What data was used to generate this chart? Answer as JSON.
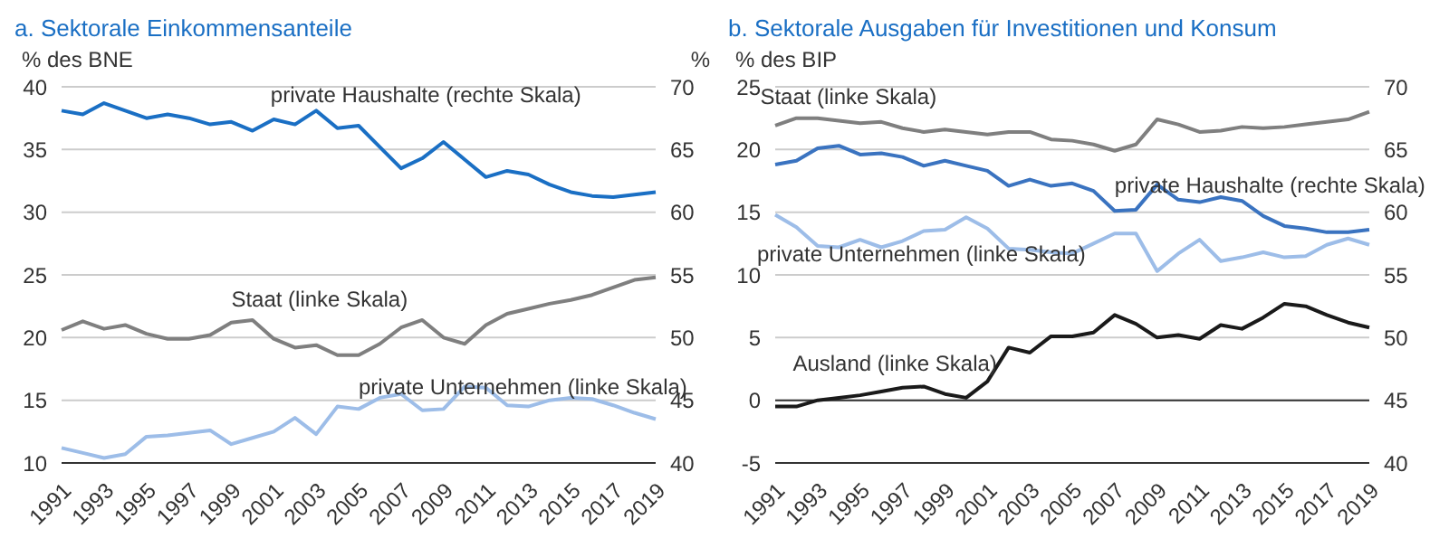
{
  "chart_data": [
    {
      "type": "line",
      "title": "a. Sektorale Einkommensanteile",
      "ylabel": "% des BNE",
      "y2label": "%",
      "categories": [
        "1991",
        null,
        "1993",
        null,
        "1995",
        null,
        "1997",
        null,
        "1999",
        null,
        "2001",
        null,
        "2003",
        null,
        "2005",
        null,
        "2007",
        null,
        "2009",
        null,
        "2011",
        null,
        "2013",
        null,
        "2015",
        null,
        "2017",
        null,
        "2019"
      ],
      "series": [
        {
          "name": "private Haushalte (rechte Skala)",
          "color": "#1a6fc4",
          "axis": "y2",
          "values": [
            68.1,
            67.8,
            68.7,
            68.1,
            67.5,
            67.8,
            67.5,
            67.0,
            67.2,
            66.5,
            67.4,
            67.0,
            68.1,
            66.7,
            66.9,
            65.2,
            63.5,
            64.3,
            65.6,
            64.2,
            62.8,
            63.3,
            63.0,
            62.2,
            61.6,
            61.3,
            61.2,
            61.4,
            61.6
          ]
        },
        {
          "name": "Staat (linke Skala)",
          "color": "#7f7f7f",
          "values": [
            20.6,
            21.3,
            20.7,
            21.0,
            20.3,
            19.9,
            19.9,
            20.2,
            21.2,
            21.4,
            19.9,
            19.2,
            19.4,
            18.6,
            18.6,
            19.5,
            20.8,
            21.4,
            20.0,
            19.5,
            21.0,
            21.9,
            22.3,
            22.7,
            23.0,
            23.4,
            24.0,
            24.6,
            24.8
          ]
        },
        {
          "name": "private Unternehmen (linke Skala)",
          "color": "#9dbde8",
          "values": [
            11.2,
            10.8,
            10.4,
            10.7,
            12.1,
            12.2,
            12.4,
            12.6,
            11.5,
            12.0,
            12.5,
            13.6,
            12.3,
            14.5,
            14.3,
            15.2,
            15.5,
            14.2,
            14.3,
            16.1,
            16.0,
            14.6,
            14.5,
            15.0,
            15.2,
            15.1,
            14.6,
            14.0,
            13.5
          ]
        }
      ],
      "ylim": [
        10,
        40
      ],
      "yticks": [
        10,
        15,
        20,
        25,
        30,
        35,
        40
      ],
      "y2lim": [
        40,
        70
      ],
      "y2ticks": [
        40,
        45,
        50,
        55,
        60,
        65,
        70
      ],
      "grid": "y",
      "legend": false
    },
    {
      "type": "line",
      "title": "b. Sektorale Ausgaben für Investitionen und Konsum",
      "ylabel": "% des BIP",
      "categories": [
        "1991",
        null,
        "1993",
        null,
        "1995",
        null,
        "1997",
        null,
        "1999",
        null,
        "2001",
        null,
        "2003",
        null,
        "2005",
        null,
        "2007",
        null,
        "2009",
        null,
        "2011",
        null,
        "2013",
        null,
        "2015",
        null,
        "2017",
        null,
        "2019"
      ],
      "series": [
        {
          "name": "Staat (linke Skala)",
          "color": "#7f7f7f",
          "values": [
            21.9,
            22.5,
            22.5,
            22.3,
            22.1,
            22.2,
            21.7,
            21.4,
            21.6,
            21.4,
            21.2,
            21.4,
            21.4,
            20.8,
            20.7,
            20.4,
            19.9,
            20.4,
            22.4,
            22.0,
            21.4,
            21.5,
            21.8,
            21.7,
            21.8,
            22.0,
            22.2,
            22.4,
            23.0
          ]
        },
        {
          "name": "private Haushalte (rechte Skala)",
          "color": "#3a73c0",
          "axis": "y2",
          "values": [
            63.8,
            64.1,
            65.1,
            65.3,
            64.6,
            64.7,
            64.4,
            63.7,
            64.1,
            63.7,
            63.3,
            62.1,
            62.6,
            62.1,
            62.3,
            61.7,
            60.1,
            60.2,
            62.2,
            61.0,
            60.8,
            61.2,
            60.9,
            59.7,
            58.9,
            58.7,
            58.4,
            58.4,
            58.6
          ]
        },
        {
          "name": "private Unternehmen (linke Skala)",
          "color": "#9dbde8",
          "values": [
            14.8,
            13.8,
            12.3,
            12.2,
            12.8,
            12.2,
            12.7,
            13.5,
            13.6,
            14.6,
            13.7,
            12.1,
            12.0,
            11.8,
            11.7,
            12.5,
            13.3,
            13.3,
            10.3,
            11.7,
            12.8,
            11.1,
            11.4,
            11.8,
            11.4,
            11.5,
            12.4,
            12.9,
            12.4
          ]
        },
        {
          "name": "Ausland (linke Skala)",
          "color": "#1a1a1a",
          "values": [
            -0.5,
            -0.5,
            0.0,
            0.2,
            0.4,
            0.7,
            1.0,
            1.1,
            0.5,
            0.2,
            1.5,
            4.2,
            3.8,
            5.1,
            5.1,
            5.4,
            6.8,
            6.1,
            5.0,
            5.2,
            4.9,
            6.0,
            5.7,
            6.6,
            7.7,
            7.5,
            6.8,
            6.2,
            5.8
          ]
        }
      ],
      "ylim": [
        -5,
        25
      ],
      "yticks": [
        -5,
        0,
        5,
        10,
        15,
        20,
        25
      ],
      "y2lim": [
        40,
        70
      ],
      "y2ticks": [
        40,
        45,
        50,
        55,
        60,
        65,
        70
      ],
      "grid": "y",
      "legend": false,
      "ref_lines": [
        {
          "axis": "y",
          "value": 0,
          "color": "#333333"
        }
      ]
    }
  ]
}
